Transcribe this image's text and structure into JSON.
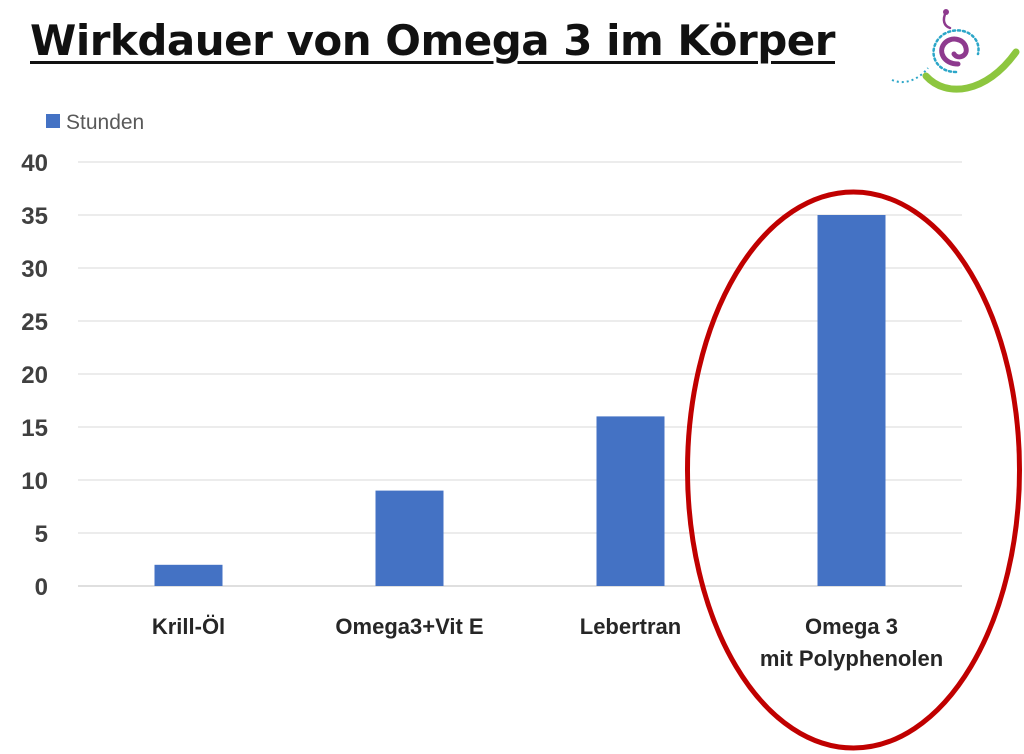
{
  "title": "Wirkdauer von Omega 3 im Körper",
  "chart_data": {
    "type": "bar",
    "categories": [
      "Krill-Öl",
      "Omega3+Vit E",
      "Lebertran",
      "Omega 3\nmit Polyphenolen"
    ],
    "series": [
      {
        "name": "Stunden",
        "values": [
          2,
          9,
          16,
          35
        ],
        "color": "#4472C4"
      }
    ],
    "ylim": [
      0,
      40
    ],
    "yticks": [
      0,
      5,
      10,
      15,
      20,
      25,
      30,
      35,
      40
    ],
    "grid": true,
    "legend": "top-left",
    "highlight": {
      "category_index": 3,
      "shape": "ellipse",
      "color": "#C00000"
    }
  },
  "logo": {
    "icon": "spiral-logo-icon",
    "colors": [
      "#8E3A8E",
      "#2BA6C8",
      "#8DC63F"
    ]
  }
}
